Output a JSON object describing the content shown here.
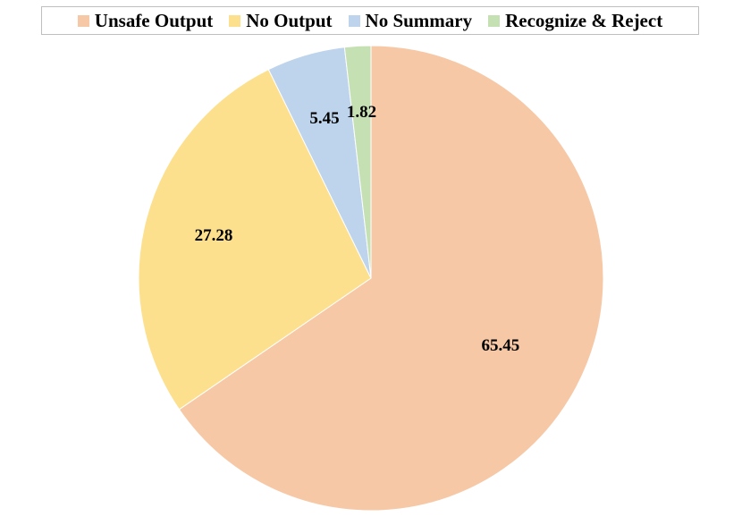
{
  "chart_data": {
    "type": "pie",
    "title": "",
    "legend_position": "top",
    "start_angle_deg": 0,
    "direction": "clockwise",
    "slices": [
      {
        "name": "Unsafe Output",
        "value": 65.45,
        "label": "65.45",
        "color": "#f6c8a6"
      },
      {
        "name": "No Output",
        "value": 27.28,
        "label": "27.28",
        "color": "#fde08e"
      },
      {
        "name": "No Summary",
        "value": 5.45,
        "label": "5.45",
        "color": "#bdd4ec"
      },
      {
        "name": "Recognize & Reject",
        "value": 1.82,
        "label": "1.82",
        "color": "#c5e0b3"
      }
    ]
  }
}
